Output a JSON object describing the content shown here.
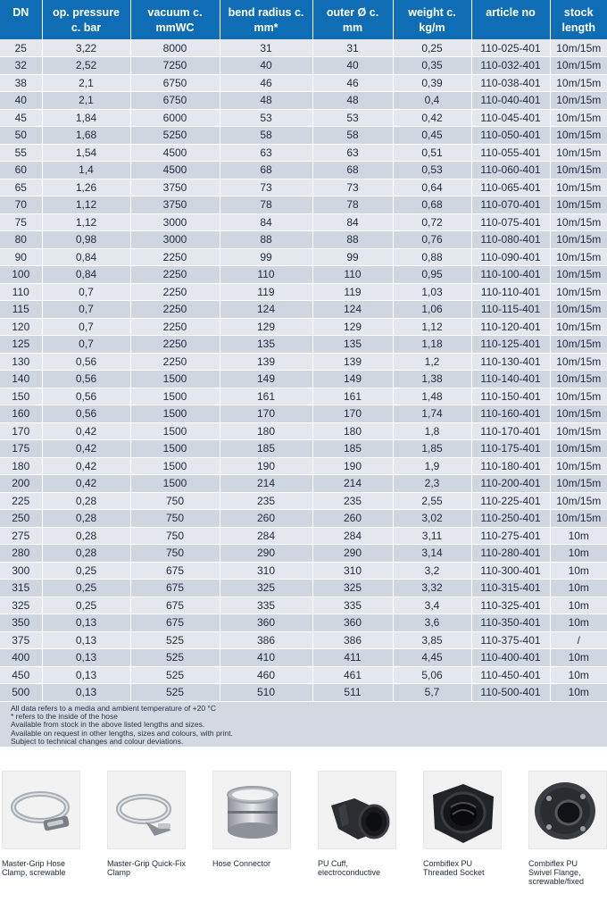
{
  "table": {
    "headers": [
      [
        "DN"
      ],
      [
        "op. pressure",
        "c. bar"
      ],
      [
        "vacuum c.",
        "mmWC"
      ],
      [
        "bend radius c.",
        "mm*"
      ],
      [
        "outer Ø c.",
        "mm"
      ],
      [
        "weight c.",
        "kg/m"
      ],
      [
        "article no"
      ],
      [
        "stock",
        "length"
      ]
    ],
    "rows": [
      [
        "25",
        "3,22",
        "8000",
        "31",
        "31",
        "0,25",
        "110-025-401",
        "10m/15m"
      ],
      [
        "32",
        "2,52",
        "7250",
        "40",
        "40",
        "0,35",
        "110-032-401",
        "10m/15m"
      ],
      [
        "38",
        "2,1",
        "6750",
        "46",
        "46",
        "0,39",
        "110-038-401",
        "10m/15m"
      ],
      [
        "40",
        "2,1",
        "6750",
        "48",
        "48",
        "0,4",
        "110-040-401",
        "10m/15m"
      ],
      [
        "45",
        "1,84",
        "6000",
        "53",
        "53",
        "0,42",
        "110-045-401",
        "10m/15m"
      ],
      [
        "50",
        "1,68",
        "5250",
        "58",
        "58",
        "0,45",
        "110-050-401",
        "10m/15m"
      ],
      [
        "55",
        "1,54",
        "4500",
        "63",
        "63",
        "0,51",
        "110-055-401",
        "10m/15m"
      ],
      [
        "60",
        "1,4",
        "4500",
        "68",
        "68",
        "0,53",
        "110-060-401",
        "10m/15m"
      ],
      [
        "65",
        "1,26",
        "3750",
        "73",
        "73",
        "0,64",
        "110-065-401",
        "10m/15m"
      ],
      [
        "70",
        "1,12",
        "3750",
        "78",
        "78",
        "0,68",
        "110-070-401",
        "10m/15m"
      ],
      [
        "75",
        "1,12",
        "3000",
        "84",
        "84",
        "0,72",
        "110-075-401",
        "10m/15m"
      ],
      [
        "80",
        "0,98",
        "3000",
        "88",
        "88",
        "0,76",
        "110-080-401",
        "10m/15m"
      ],
      [
        "90",
        "0,84",
        "2250",
        "99",
        "99",
        "0,88",
        "110-090-401",
        "10m/15m"
      ],
      [
        "100",
        "0,84",
        "2250",
        "110",
        "110",
        "0,95",
        "110-100-401",
        "10m/15m"
      ],
      [
        "110",
        "0,7",
        "2250",
        "119",
        "119",
        "1,03",
        "110-110-401",
        "10m/15m"
      ],
      [
        "115",
        "0,7",
        "2250",
        "124",
        "124",
        "1,06",
        "110-115-401",
        "10m/15m"
      ],
      [
        "120",
        "0,7",
        "2250",
        "129",
        "129",
        "1,12",
        "110-120-401",
        "10m/15m"
      ],
      [
        "125",
        "0,7",
        "2250",
        "135",
        "135",
        "1,18",
        "110-125-401",
        "10m/15m"
      ],
      [
        "130",
        "0,56",
        "2250",
        "139",
        "139",
        "1,2",
        "110-130-401",
        "10m/15m"
      ],
      [
        "140",
        "0,56",
        "1500",
        "149",
        "149",
        "1,38",
        "110-140-401",
        "10m/15m"
      ],
      [
        "150",
        "0,56",
        "1500",
        "161",
        "161",
        "1,48",
        "110-150-401",
        "10m/15m"
      ],
      [
        "160",
        "0,56",
        "1500",
        "170",
        "170",
        "1,74",
        "110-160-401",
        "10m/15m"
      ],
      [
        "170",
        "0,42",
        "1500",
        "180",
        "180",
        "1,8",
        "110-170-401",
        "10m/15m"
      ],
      [
        "175",
        "0,42",
        "1500",
        "185",
        "185",
        "1,85",
        "110-175-401",
        "10m/15m"
      ],
      [
        "180",
        "0,42",
        "1500",
        "190",
        "190",
        "1,9",
        "110-180-401",
        "10m/15m"
      ],
      [
        "200",
        "0,42",
        "1500",
        "214",
        "214",
        "2,3",
        "110-200-401",
        "10m/15m"
      ],
      [
        "225",
        "0,28",
        "750",
        "235",
        "235",
        "2,55",
        "110-225-401",
        "10m/15m"
      ],
      [
        "250",
        "0,28",
        "750",
        "260",
        "260",
        "3,02",
        "110-250-401",
        "10m/15m"
      ],
      [
        "275",
        "0,28",
        "750",
        "284",
        "284",
        "3,11",
        "110-275-401",
        "10m"
      ],
      [
        "280",
        "0,28",
        "750",
        "290",
        "290",
        "3,14",
        "110-280-401",
        "10m"
      ],
      [
        "300",
        "0,25",
        "675",
        "310",
        "310",
        "3,2",
        "110-300-401",
        "10m"
      ],
      [
        "315",
        "0,25",
        "675",
        "325",
        "325",
        "3,32",
        "110-315-401",
        "10m"
      ],
      [
        "325",
        "0,25",
        "675",
        "335",
        "335",
        "3,4",
        "110-325-401",
        "10m"
      ],
      [
        "350",
        "0,13",
        "675",
        "360",
        "360",
        "3,6",
        "110-350-401",
        "10m"
      ],
      [
        "375",
        "0,13",
        "525",
        "386",
        "386",
        "3,85",
        "110-375-401",
        "/"
      ],
      [
        "400",
        "0,13",
        "525",
        "410",
        "411",
        "4,45",
        "110-400-401",
        "10m"
      ],
      [
        "450",
        "0,13",
        "525",
        "460",
        "461",
        "5,06",
        "110-450-401",
        "10m"
      ],
      [
        "500",
        "0,13",
        "525",
        "510",
        "511",
        "5,7",
        "110-500-401",
        "10m"
      ]
    ]
  },
  "notes": [
    "All data refers to a media and ambient temperature of +20 °C",
    "* refers to the inside of the hose",
    "Available from stock in the above listed lengths and sizes.",
    "Available on request in other lengths, sizes and colours, with print.",
    "Subject to technical changes and colour deviations."
  ],
  "products": [
    {
      "icon": "hose-clamp-icon",
      "caption": [
        "Master-Grip Hose",
        "Clamp, screwable"
      ]
    },
    {
      "icon": "quick-fix-clamp-icon",
      "caption": [
        "Master-Grip Quick-Fix",
        "Clamp"
      ]
    },
    {
      "icon": "hose-connector-icon",
      "caption": [
        "Hose Connector"
      ]
    },
    {
      "icon": "pu-cuff-icon",
      "caption": [
        "PU Cuff,",
        "electroconductive"
      ]
    },
    {
      "icon": "threaded-socket-icon",
      "caption": [
        "Combiflex PU",
        "Threaded Socket"
      ]
    },
    {
      "icon": "swivel-flange-icon",
      "caption": [
        "Combiflex PU",
        "Swivel Flange,",
        "screwable/fixed"
      ]
    }
  ],
  "colors": {
    "header": "#0f6db5",
    "row_light": "#e4e8ee",
    "row_dark": "#d0d6df",
    "notes_bg": "#d4d9e1"
  }
}
